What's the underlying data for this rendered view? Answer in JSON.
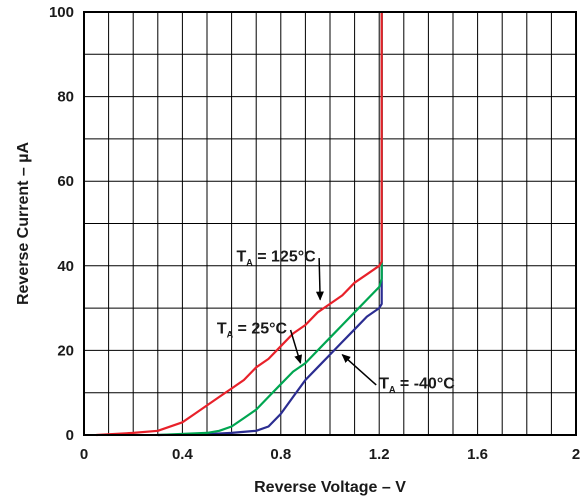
{
  "chart_data": {
    "type": "line",
    "xlabel": "Reverse Voltage – V",
    "ylabel": "Reverse Current – µA",
    "xlim": [
      0,
      2
    ],
    "ylim": [
      0,
      100
    ],
    "x_ticks": [
      "0",
      "0.4",
      "0.8",
      "1.2",
      "1.6",
      "2"
    ],
    "y_ticks": [
      "0",
      "20",
      "40",
      "60",
      "80",
      "100"
    ],
    "grid": true,
    "series": [
      {
        "name": "T_A = -40°C",
        "color": "#2b2d91",
        "x": [
          0.3,
          0.5,
          0.6,
          0.7,
          0.75,
          0.8,
          0.85,
          0.9,
          0.95,
          1.0,
          1.05,
          1.1,
          1.15,
          1.2,
          1.21,
          1.21,
          1.21
        ],
        "y": [
          0,
          0.2,
          0.5,
          1,
          2,
          5,
          9,
          13,
          16,
          19,
          22,
          25,
          28,
          30,
          31,
          60,
          100
        ]
      },
      {
        "name": "T_A = 25°C",
        "color": "#00a651",
        "x": [
          0.3,
          0.5,
          0.55,
          0.6,
          0.65,
          0.7,
          0.75,
          0.8,
          0.85,
          0.9,
          0.95,
          1.0,
          1.05,
          1.1,
          1.15,
          1.2,
          1.21,
          1.21,
          1.21
        ],
        "y": [
          0,
          0.5,
          1,
          2,
          4,
          6,
          9,
          12,
          15,
          17,
          20,
          23,
          26,
          29,
          32,
          35,
          37,
          60,
          100
        ]
      },
      {
        "name": "T_A = 125°C",
        "color": "#e8212a",
        "x": [
          0.05,
          0.2,
          0.3,
          0.4,
          0.45,
          0.5,
          0.55,
          0.6,
          0.65,
          0.7,
          0.75,
          0.8,
          0.85,
          0.9,
          0.95,
          1.0,
          1.05,
          1.1,
          1.15,
          1.2,
          1.21,
          1.21,
          1.21
        ],
        "y": [
          0,
          0.5,
          1,
          3,
          5,
          7,
          9,
          11,
          13,
          16,
          18,
          21,
          24,
          26,
          29,
          31,
          33,
          36,
          38,
          40,
          41,
          70,
          100
        ]
      }
    ],
    "annotations": [
      {
        "main": "T",
        "sub": "A",
        "rest": " = 125°C",
        "x": 0.62,
        "y": 41,
        "arrow_to": [
          0.96,
          32
        ]
      },
      {
        "main": "T",
        "sub": "A",
        "rest": " = 25°C",
        "x": 0.54,
        "y": 24,
        "arrow_to": [
          0.88,
          17
        ]
      },
      {
        "main": "T",
        "sub": "A",
        "rest": " = -40°C",
        "x": 1.2,
        "y": 11,
        "arrow_to": [
          1.05,
          19
        ]
      }
    ]
  }
}
